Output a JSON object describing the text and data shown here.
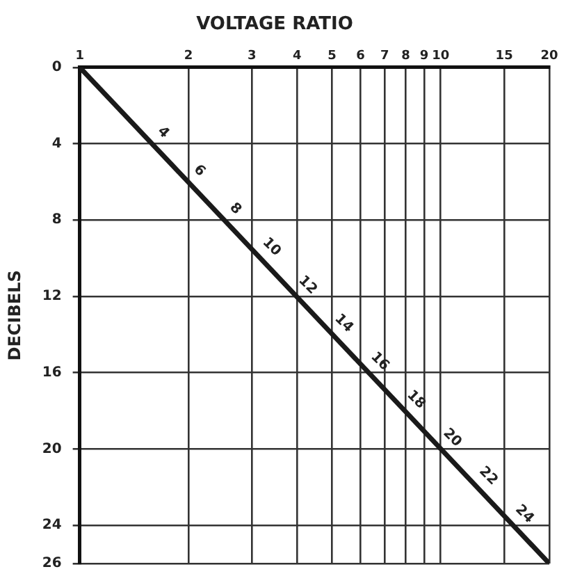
{
  "chart_data": {
    "type": "line",
    "title": "VOLTAGE RATIO",
    "ylabel": "DECIBELS",
    "x": [
      1,
      20
    ],
    "series": [
      {
        "color": "#1a1a1a",
        "values": [
          0,
          26
        ]
      }
    ],
    "log": "x",
    "xlim": [
      1,
      20
    ],
    "xticks": [
      1,
      2,
      3,
      4,
      5,
      6,
      7,
      8,
      9,
      10,
      15,
      20
    ],
    "ylim": [
      26,
      0
    ],
    "yticks": [
      0,
      4,
      8,
      12,
      16,
      20,
      24,
      26
    ],
    "grid": true,
    "legend": false,
    "marker": "none",
    "line_style": "solid",
    "annotations": [
      "4",
      "6",
      "8",
      "10",
      "12",
      "14",
      "16",
      "18",
      "20",
      "22",
      "24"
    ]
  }
}
